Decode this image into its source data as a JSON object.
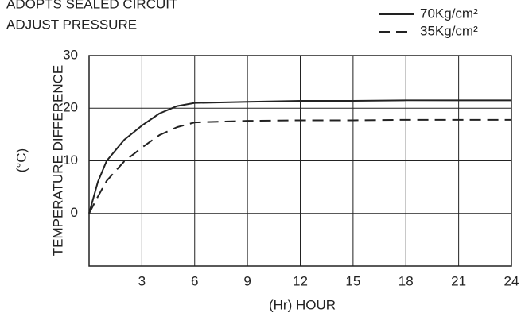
{
  "chart_data": {
    "type": "line",
    "title": [
      "ADOPTS SEALED CIRCUIT",
      "ADJUST PRESSURE"
    ],
    "x_label": "(Hr) HOUR",
    "y_label": [
      "(°C)",
      "TEMPERATURE DIFFERENCE"
    ],
    "x": [
      0,
      0.5,
      1,
      2,
      3,
      4,
      5,
      6,
      9,
      12,
      15,
      18,
      21,
      24
    ],
    "series": [
      {
        "name": "70Kg/cm²",
        "color": "#222222",
        "dash": false,
        "values": [
          0,
          6,
          10,
          14,
          16.7,
          19,
          20.4,
          21,
          21.2,
          21.4,
          21.4,
          21.5,
          21.5,
          21.5
        ]
      },
      {
        "name": "35Kg/cm²",
        "color": "#222222",
        "dash": true,
        "values": [
          0,
          3.2,
          6.2,
          9.9,
          12.5,
          14.9,
          16.4,
          17.3,
          17.6,
          17.7,
          17.7,
          17.8,
          17.8,
          17.8
        ]
      }
    ],
    "xlim": [
      0,
      24
    ],
    "xticks": [
      3,
      6,
      9,
      12,
      15,
      18,
      21,
      24
    ],
    "ylim": [
      -10,
      30
    ],
    "yticks": [
      0,
      10,
      20,
      30
    ],
    "grid": true,
    "legend": "top-right"
  }
}
